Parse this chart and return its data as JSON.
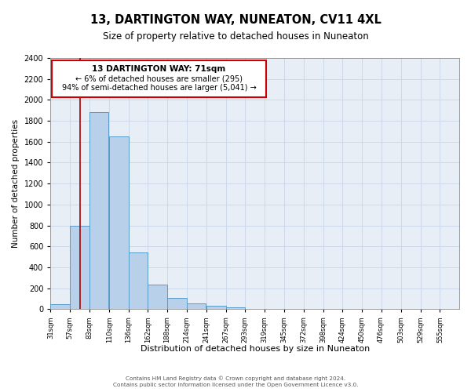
{
  "title": "13, DARTINGTON WAY, NUNEATON, CV11 4XL",
  "subtitle": "Size of property relative to detached houses in Nuneaton",
  "xlabel": "Distribution of detached houses by size in Nuneaton",
  "ylabel": "Number of detached properties",
  "bin_labels": [
    "31sqm",
    "57sqm",
    "83sqm",
    "110sqm",
    "136sqm",
    "162sqm",
    "188sqm",
    "214sqm",
    "241sqm",
    "267sqm",
    "293sqm",
    "319sqm",
    "345sqm",
    "372sqm",
    "398sqm",
    "424sqm",
    "450sqm",
    "476sqm",
    "503sqm",
    "529sqm",
    "555sqm"
  ],
  "bin_edges": [
    31,
    57,
    83,
    110,
    136,
    162,
    188,
    214,
    241,
    267,
    293,
    319,
    345,
    372,
    398,
    424,
    450,
    476,
    503,
    529,
    555
  ],
  "bar_heights": [
    50,
    800,
    1880,
    1650,
    540,
    235,
    110,
    55,
    30,
    15,
    5,
    3,
    2,
    1,
    0,
    0,
    0,
    0,
    0,
    0
  ],
  "bar_color": "#b8d0ea",
  "bar_edge_color": "#5a9bc8",
  "property_size": 71,
  "red_line_color": "#aa0000",
  "ylim": [
    0,
    2400
  ],
  "yticks": [
    0,
    200,
    400,
    600,
    800,
    1000,
    1200,
    1400,
    1600,
    1800,
    2000,
    2200,
    2400
  ],
  "annotation_title": "13 DARTINGTON WAY: 71sqm",
  "annotation_line1": "← 6% of detached houses are smaller (295)",
  "annotation_line2": "94% of semi-detached houses are larger (5,041) →",
  "annotation_box_color": "#ffffff",
  "annotation_box_edge": "#cc0000",
  "footer_line1": "Contains HM Land Registry data © Crown copyright and database right 2024.",
  "footer_line2": "Contains public sector information licensed under the Open Government Licence v3.0.",
  "grid_color": "#c8d4e8",
  "background_color": "#e8eef6"
}
